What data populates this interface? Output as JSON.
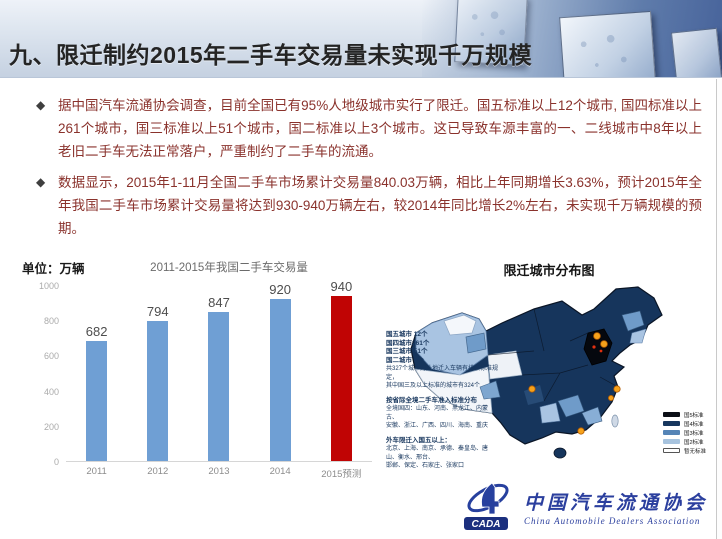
{
  "slide": {
    "title": "九、限迁制约2015年二手车交易量未实现千万规模",
    "bullets": [
      "据中国汽车流通协会调查，目前全国已有95%人地级城市实行了限迁。国五标准以上12个城市, 国四标准以上261个城市，国三标准以上51个城市，国二标准以上3个城市。这已导致车源丰富的一、二线城市中8年以上老旧二手车无法正常落户，严重制约了二手车的流通。",
      "数据显示，2015年1-11月全国二手车市场累计交易量840.03万辆，相比上年同期增长3.63%，预计2015年全年我国二手车市场累计交易量将达到930-940万辆左右，较2014年同比增长2%左右，未实现千万辆规模的预期。"
    ]
  },
  "chart": {
    "unit_label": "单位：万辆",
    "title": "2011-2015年我国二手车交易量"
  },
  "chart_data": {
    "type": "bar",
    "title": "2011-2015年我国二手车交易量",
    "unit": "万辆",
    "categories": [
      "2011",
      "2012",
      "2013",
      "2014",
      "2015预测"
    ],
    "values": [
      682,
      794,
      847,
      920,
      940
    ],
    "bar_colors": [
      "#6f9fd4",
      "#6f9fd4",
      "#6f9fd4",
      "#6f9fd4",
      "#c00404"
    ],
    "ylim": [
      0,
      1000
    ],
    "yticks": [
      0,
      200,
      400,
      600,
      800,
      1000
    ],
    "grid": false,
    "value_labels": true,
    "legend_position": "none"
  },
  "map": {
    "title": "限迁城市分布图",
    "annotations": [
      {
        "text": "国五城市 12个",
        "bold": true,
        "gap": false
      },
      {
        "text": "国四城市261个",
        "bold": true,
        "gap": false
      },
      {
        "text": "国三城市 51个",
        "bold": true,
        "gap": false
      },
      {
        "text": "国二城市 3个",
        "bold": true,
        "gap": false
      },
      {
        "text": "共327个城市对外地迁入车辆有排放标准规定，",
        "bold": false,
        "gap": false
      },
      {
        "text": "其中国三及以上标准的城市有324个",
        "bold": false,
        "gap": false
      },
      {
        "text": "按省际全境二手车准入标准分布",
        "bold": true,
        "gap": true
      },
      {
        "text": "全境国四：山东、河南、黑龙江、内蒙古、",
        "bold": false,
        "gap": false
      },
      {
        "text": "安徽、浙江、广西、四川、海南、重庆",
        "bold": false,
        "gap": false
      },
      {
        "text": "外车限迁入国五以上：",
        "bold": true,
        "gap": true
      },
      {
        "text": "北京、上海、南京、承德、秦皇岛、唐山、衡水、邢台、",
        "bold": false,
        "gap": false
      },
      {
        "text": "邯郸、保定、石家庄、张家口",
        "bold": false,
        "gap": false
      }
    ],
    "legend": [
      {
        "label": "国5标准",
        "color": "#0b0f16",
        "border": "#0b0f16"
      },
      {
        "label": "国4标准",
        "color": "#17375e",
        "border": "#17375e"
      },
      {
        "label": "国3标准",
        "color": "#5584b6",
        "border": "#5584b6"
      },
      {
        "label": "国2标准",
        "color": "#a7c3de",
        "border": "#a7c3de"
      },
      {
        "label": "暂无标准",
        "color": "#ffffff",
        "border": "#555555"
      }
    ]
  },
  "footer_logo": {
    "acronym": "CADA",
    "name_cn": "中国汽车流通协会",
    "name_en": "China Automobile Dealers Association"
  },
  "colors": {
    "body_text": "#8a322c",
    "bar_blue": "#6f9fd4",
    "bar_red": "#c00404",
    "map_dark": "#16355c",
    "logo_blue": "#2b3f9e"
  }
}
